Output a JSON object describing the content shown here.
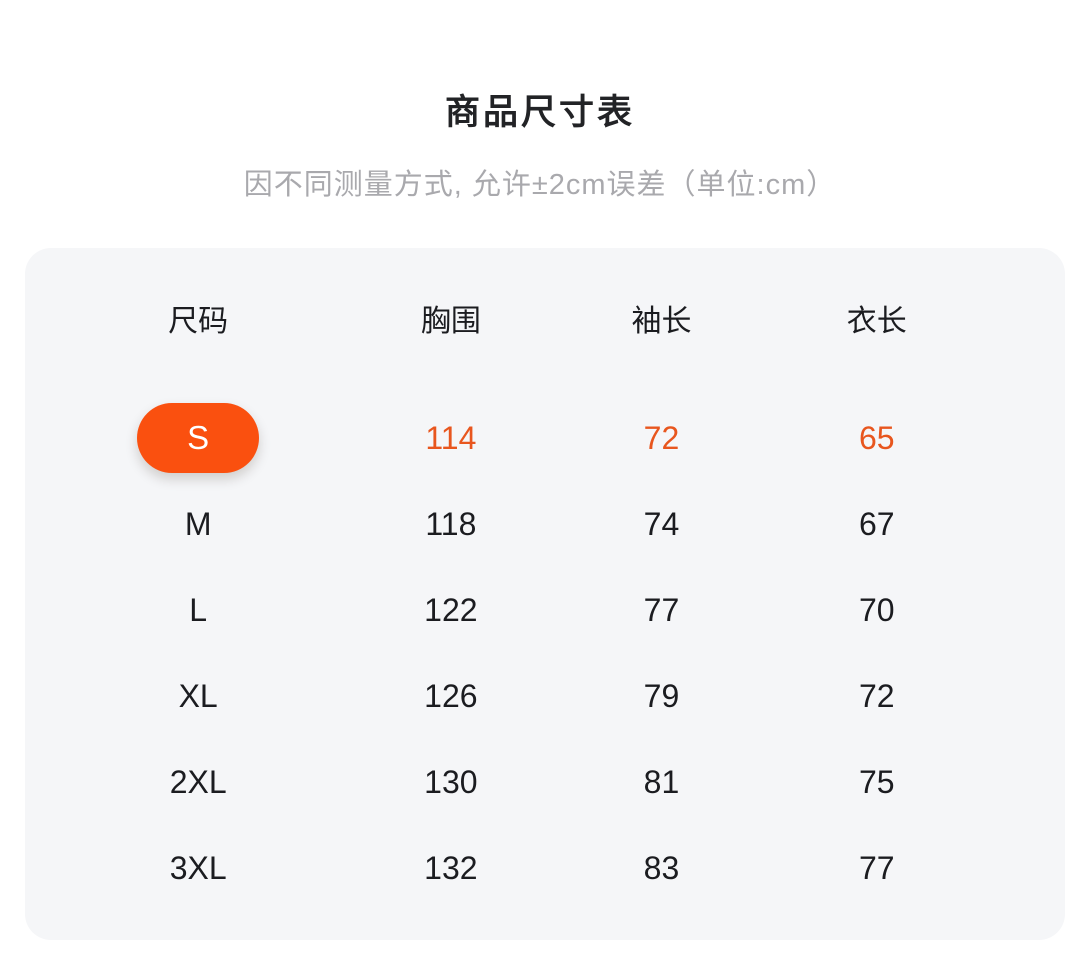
{
  "page": {
    "title": "商品尺寸表",
    "subtitle": "因不同测量方式, 允许±2cm误差（单位:cm）"
  },
  "colors": {
    "accent_pill": "#FA500F",
    "accent_value_text": "#E8561E",
    "card_background": "#F5F6F8",
    "page_background": "#FFFFFF"
  },
  "size_table": {
    "unit": "cm",
    "columns": [
      "尺码",
      "胸围",
      "袖长",
      "衣长"
    ],
    "selected_size": "S",
    "rows": [
      {
        "size": "S",
        "selected": true,
        "values": [
          "114",
          "72",
          "65"
        ]
      },
      {
        "size": "M",
        "selected": false,
        "values": [
          "118",
          "74",
          "67"
        ]
      },
      {
        "size": "L",
        "selected": false,
        "values": [
          "122",
          "77",
          "70"
        ]
      },
      {
        "size": "XL",
        "selected": false,
        "values": [
          "126",
          "79",
          "72"
        ]
      },
      {
        "size": "2XL",
        "selected": false,
        "values": [
          "130",
          "81",
          "75"
        ]
      },
      {
        "size": "3XL",
        "selected": false,
        "values": [
          "132",
          "83",
          "77"
        ]
      }
    ]
  }
}
